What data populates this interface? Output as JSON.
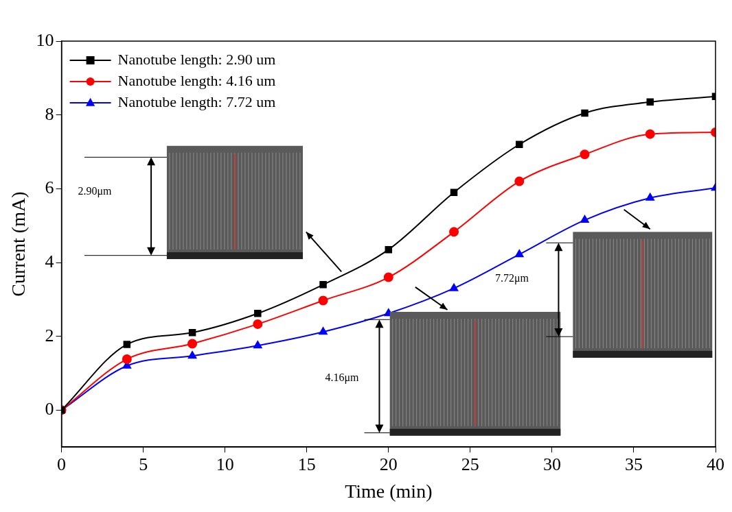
{
  "chart_data": {
    "type": "line",
    "x_label": "Time (min)",
    "y_label": "Current (mA)",
    "x": [
      0,
      4,
      8,
      12,
      16,
      20,
      24,
      28,
      32,
      36,
      40
    ],
    "series": [
      {
        "name": "Nanotube length: 2.90 um",
        "color": "#000000",
        "marker": "square",
        "values": [
          0,
          1.78,
          2.1,
          2.62,
          3.4,
          4.35,
          5.9,
          7.2,
          8.05,
          8.35,
          8.5
        ]
      },
      {
        "name": "Nanotube length: 4.16 um",
        "color": "#ff0000",
        "marker": "circle",
        "values": [
          0,
          1.38,
          1.8,
          2.33,
          2.97,
          3.6,
          4.83,
          6.2,
          6.93,
          7.48,
          7.53
        ]
      },
      {
        "name": "Nanotube length: 7.72 um",
        "color": "#0000ff",
        "marker": "triangle",
        "values": [
          0,
          1.2,
          1.47,
          1.75,
          2.12,
          2.62,
          3.3,
          4.22,
          5.15,
          5.75,
          6.02
        ]
      }
    ],
    "xlim": [
      0,
      40
    ],
    "xticks": [
      0,
      5,
      10,
      15,
      20,
      25,
      30,
      35,
      40
    ],
    "ylim": [
      -1,
      10
    ],
    "yticks": [
      0,
      2,
      4,
      6,
      8,
      10
    ],
    "grid": false,
    "legend": "upper left",
    "annotations": [
      "2.90μm",
      "4.16μm",
      "7.72μm"
    ]
  }
}
